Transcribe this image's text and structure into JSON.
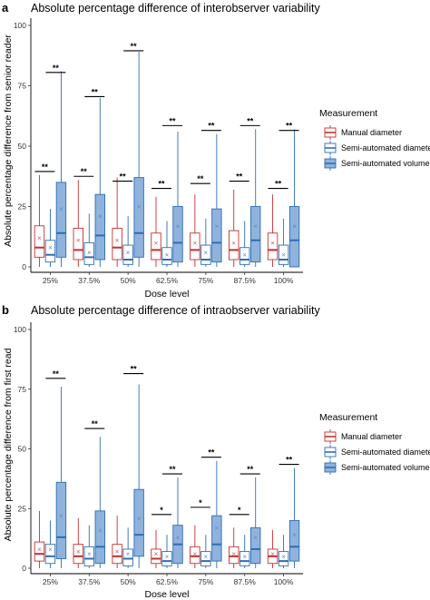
{
  "chart_data": [
    {
      "panel": "a",
      "type": "box",
      "title": "Absolute percentage difference of interobserver variability",
      "xlabel": "Dose level",
      "ylabel": "Absolute percentage difference from senior reader",
      "ylim": [
        0,
        100
      ],
      "yticks": [
        "0",
        "25",
        "50",
        "75",
        "100"
      ],
      "categories": [
        "25%",
        "37.5%",
        "50%",
        "62.5%",
        "75%",
        "87.5%",
        "100%"
      ],
      "legend_title": "Measurement",
      "series": [
        {
          "name": "Manual diameter",
          "color": "#c62f2f",
          "fill": "#ffffff",
          "boxes": [
            {
              "wl": 0,
              "q1": 4,
              "med": 8,
              "q3": 17,
              "wh": 38,
              "mean": 12
            },
            {
              "wl": 0,
              "q1": 3,
              "med": 7,
              "q3": 16,
              "wh": 36,
              "mean": 11
            },
            {
              "wl": 0,
              "q1": 3,
              "med": 8,
              "q3": 16,
              "wh": 37,
              "mean": 11
            },
            {
              "wl": 0,
              "q1": 3,
              "med": 7,
              "q3": 14,
              "wh": 29,
              "mean": 10
            },
            {
              "wl": 0,
              "q1": 3,
              "med": 7,
              "q3": 14,
              "wh": 30,
              "mean": 10
            },
            {
              "wl": 0,
              "q1": 3,
              "med": 7,
              "q3": 15,
              "wh": 32,
              "mean": 10
            },
            {
              "wl": 0,
              "q1": 3,
              "med": 7,
              "q3": 14,
              "wh": 30,
              "mean": 10
            }
          ]
        },
        {
          "name": "Semi-automated diameter",
          "color": "#2e6db4",
          "fill": "#ffffff",
          "boxes": [
            {
              "wl": 0,
              "q1": 2,
              "med": 5,
              "q3": 11,
              "wh": 24,
              "mean": 8
            },
            {
              "wl": 0,
              "q1": 1,
              "med": 4,
              "q3": 10,
              "wh": 22,
              "mean": 6
            },
            {
              "wl": 0,
              "q1": 1,
              "med": 3,
              "q3": 9,
              "wh": 21,
              "mean": 6
            },
            {
              "wl": 0,
              "q1": 1,
              "med": 3,
              "q3": 8,
              "wh": 19,
              "mean": 5
            },
            {
              "wl": 0,
              "q1": 1,
              "med": 3,
              "q3": 9,
              "wh": 20,
              "mean": 6
            },
            {
              "wl": 0,
              "q1": 1,
              "med": 3,
              "q3": 8,
              "wh": 19,
              "mean": 5
            },
            {
              "wl": 0,
              "q1": 1,
              "med": 3,
              "q3": 9,
              "wh": 20,
              "mean": 5
            }
          ]
        },
        {
          "name": "Semi-automated volume",
          "color": "#2e6db4",
          "fill": "#8fb3dc",
          "boxes": [
            {
              "wl": 0,
              "q1": 4,
              "med": 14,
              "q3": 35,
              "wh": 81,
              "mean": 24
            },
            {
              "wl": 0,
              "q1": 3,
              "med": 13,
              "q3": 30,
              "wh": 70,
              "mean": 21
            },
            {
              "wl": 0,
              "q1": 4,
              "med": 14,
              "q3": 37,
              "wh": 89,
              "mean": 25
            },
            {
              "wl": 0,
              "q1": 2,
              "med": 10,
              "q3": 25,
              "wh": 56,
              "mean": 17
            },
            {
              "wl": 0,
              "q1": 2,
              "med": 10,
              "q3": 24,
              "wh": 55,
              "mean": 17
            },
            {
              "wl": 0,
              "q1": 2,
              "med": 11,
              "q3": 25,
              "wh": 57,
              "mean": 17
            },
            {
              "wl": 0,
              "q1": 0,
              "med": 11,
              "q3": 25,
              "wh": 57,
              "mean": 17
            }
          ]
        }
      ],
      "significance": [
        {
          "category": 0,
          "from": 0,
          "to": 1,
          "y": 38,
          "label": "**"
        },
        {
          "category": 0,
          "from": 1,
          "to": 2,
          "y": 79,
          "label": "**"
        },
        {
          "category": 1,
          "from": 0,
          "to": 1,
          "y": 36,
          "label": "**"
        },
        {
          "category": 1,
          "from": 1,
          "to": 2,
          "y": 69,
          "label": "**"
        },
        {
          "category": 2,
          "from": 0,
          "to": 1,
          "y": 34,
          "label": "**"
        },
        {
          "category": 2,
          "from": 1,
          "to": 2,
          "y": 88,
          "label": "**"
        },
        {
          "category": 3,
          "from": 0,
          "to": 1,
          "y": 31,
          "label": "**"
        },
        {
          "category": 3,
          "from": 1,
          "to": 2,
          "y": 57,
          "label": "**"
        },
        {
          "category": 4,
          "from": 0,
          "to": 1,
          "y": 33,
          "label": "**"
        },
        {
          "category": 4,
          "from": 1,
          "to": 2,
          "y": 55,
          "label": "**"
        },
        {
          "category": 5,
          "from": 0,
          "to": 1,
          "y": 34,
          "label": "**"
        },
        {
          "category": 5,
          "from": 1,
          "to": 2,
          "y": 57,
          "label": "**"
        },
        {
          "category": 6,
          "from": 0,
          "to": 1,
          "y": 31,
          "label": "**"
        },
        {
          "category": 6,
          "from": 1,
          "to": 2,
          "y": 55,
          "label": "**"
        }
      ]
    },
    {
      "panel": "b",
      "type": "box",
      "title": "Absolute percentage difference of intraobserver variability",
      "xlabel": "Dose level",
      "ylabel": "Absolute percentage difference from first read",
      "ylim": [
        0,
        100
      ],
      "yticks": [
        "0",
        "25",
        "50",
        "75",
        "100"
      ],
      "categories": [
        "25%",
        "37.5%",
        "50%",
        "62.5%",
        "75%",
        "87.5%",
        "100%"
      ],
      "legend_title": "Measurement",
      "series": [
        {
          "name": "Manual diameter",
          "color": "#c62f2f",
          "fill": "#ffffff",
          "boxes": [
            {
              "wl": 0,
              "q1": 3,
              "med": 6,
              "q3": 11,
              "wh": 24,
              "mean": 8
            },
            {
              "wl": 0,
              "q1": 2,
              "med": 5,
              "q3": 10,
              "wh": 21,
              "mean": 7
            },
            {
              "wl": 0,
              "q1": 2,
              "med": 5,
              "q3": 10,
              "wh": 22,
              "mean": 7
            },
            {
              "wl": 0,
              "q1": 2,
              "med": 4,
              "q3": 8,
              "wh": 16,
              "mean": 6
            },
            {
              "wl": 0,
              "q1": 2,
              "med": 5,
              "q3": 9,
              "wh": 18,
              "mean": 6
            },
            {
              "wl": 0,
              "q1": 2,
              "med": 5,
              "q3": 9,
              "wh": 17,
              "mean": 6
            },
            {
              "wl": 0,
              "q1": 2,
              "med": 5,
              "q3": 8,
              "wh": 16,
              "mean": 6
            }
          ]
        },
        {
          "name": "Semi-automated diameter",
          "color": "#2e6db4",
          "fill": "#ffffff",
          "boxes": [
            {
              "wl": 0,
              "q1": 2,
              "med": 5,
              "q3": 10,
              "wh": 20,
              "mean": 8
            },
            {
              "wl": 0,
              "q1": 1,
              "med": 4,
              "q3": 9,
              "wh": 18,
              "mean": 6
            },
            {
              "wl": 0,
              "q1": 1,
              "med": 4,
              "q3": 8,
              "wh": 17,
              "mean": 6
            },
            {
              "wl": 0,
              "q1": 1,
              "med": 3,
              "q3": 7,
              "wh": 14,
              "mean": 5
            },
            {
              "wl": 0,
              "q1": 1,
              "med": 3,
              "q3": 7,
              "wh": 14,
              "mean": 5
            },
            {
              "wl": 0,
              "q1": 1,
              "med": 3,
              "q3": 7,
              "wh": 14,
              "mean": 5
            },
            {
              "wl": 0,
              "q1": 1,
              "med": 3,
              "q3": 7,
              "wh": 14,
              "mean": 5
            }
          ]
        },
        {
          "name": "Semi-automated volume",
          "color": "#2e6db4",
          "fill": "#8fb3dc",
          "boxes": [
            {
              "wl": 0,
              "q1": 4,
              "med": 13,
              "q3": 36,
              "wh": 76,
              "mean": 22
            },
            {
              "wl": 0,
              "q1": 2,
              "med": 9,
              "q3": 24,
              "wh": 55,
              "mean": 16
            },
            {
              "wl": 0,
              "q1": 5,
              "med": 14,
              "q3": 33,
              "wh": 77,
              "mean": 21
            },
            {
              "wl": 0,
              "q1": 2,
              "med": 10,
              "q3": 18,
              "wh": 38,
              "mean": 13
            },
            {
              "wl": 0,
              "q1": 3,
              "med": 10,
              "q3": 22,
              "wh": 45,
              "mean": 17
            },
            {
              "wl": 0,
              "q1": 2,
              "med": 8,
              "q3": 17,
              "wh": 38,
              "mean": 13
            },
            {
              "wl": 0,
              "q1": 3,
              "med": 9,
              "q3": 20,
              "wh": 42,
              "mean": 14
            }
          ]
        }
      ],
      "significance": [
        {
          "category": 0,
          "from": 1,
          "to": 2,
          "y": 78,
          "label": "**"
        },
        {
          "category": 1,
          "from": 1,
          "to": 2,
          "y": 57,
          "label": "**"
        },
        {
          "category": 2,
          "from": 1,
          "to": 2,
          "y": 80,
          "label": "**"
        },
        {
          "category": 3,
          "from": 0,
          "to": 1,
          "y": 21,
          "label": "*"
        },
        {
          "category": 3,
          "from": 1,
          "to": 2,
          "y": 38,
          "label": "**"
        },
        {
          "category": 4,
          "from": 0,
          "to": 1,
          "y": 24,
          "label": "*"
        },
        {
          "category": 4,
          "from": 1,
          "to": 2,
          "y": 45,
          "label": "**"
        },
        {
          "category": 5,
          "from": 0,
          "to": 1,
          "y": 21,
          "label": "*"
        },
        {
          "category": 5,
          "from": 1,
          "to": 2,
          "y": 38,
          "label": "**"
        },
        {
          "category": 6,
          "from": 1,
          "to": 2,
          "y": 42,
          "label": "**"
        }
      ]
    }
  ]
}
